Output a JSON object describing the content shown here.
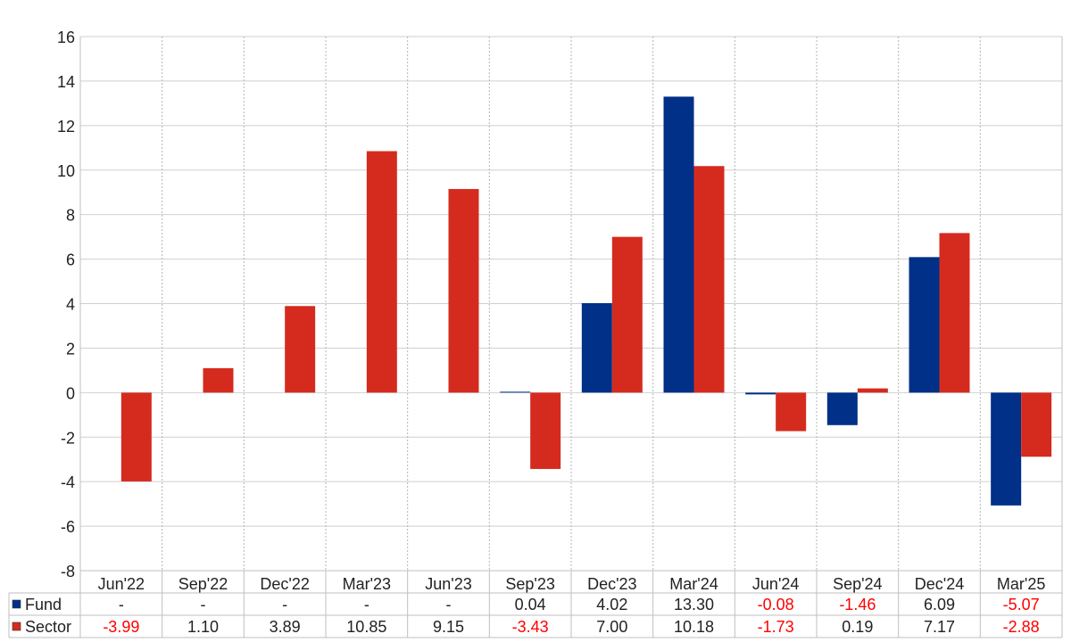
{
  "chart_data": {
    "type": "bar",
    "categories": [
      "Jun'22",
      "Sep'22",
      "Dec'22",
      "Mar'23",
      "Jun'23",
      "Sep'23",
      "Dec'23",
      "Mar'24",
      "Jun'24",
      "Sep'24",
      "Dec'24",
      "Mar'25"
    ],
    "series": [
      {
        "name": "Fund",
        "color": "#003087",
        "values": [
          null,
          null,
          null,
          null,
          null,
          0.04,
          4.02,
          13.3,
          -0.08,
          -1.46,
          6.09,
          -5.07
        ],
        "labels": [
          "-",
          "-",
          "-",
          "-",
          "-",
          "0.04",
          "4.02",
          "13.30",
          "-0.08",
          "-1.46",
          "6.09",
          "-5.07"
        ]
      },
      {
        "name": "Sector",
        "color": "#d52b1e",
        "values": [
          -3.99,
          1.1,
          3.89,
          10.85,
          9.15,
          -3.43,
          7.0,
          10.18,
          -1.73,
          0.19,
          7.17,
          -2.88
        ],
        "labels": [
          "-3.99",
          "1.10",
          "3.89",
          "10.85",
          "9.15",
          "-3.43",
          "7.00",
          "10.18",
          "-1.73",
          "0.19",
          "7.17",
          "-2.88"
        ]
      }
    ],
    "ylim": [
      -8,
      16
    ],
    "yticks": [
      "16",
      "14",
      "12",
      "10",
      "8",
      "6",
      "4",
      "2",
      "0",
      "-2",
      "-4",
      "-6",
      "-8"
    ],
    "negative_label_color": "#ff0000",
    "grid": true,
    "legend": "table-bottom-left"
  }
}
